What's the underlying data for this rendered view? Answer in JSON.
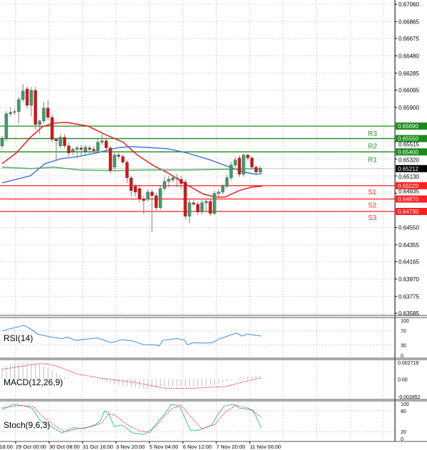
{
  "chart_data": [
    {
      "type": "candlestick",
      "panel": "price",
      "y_ticks": [
        "0.67060",
        "0.66865",
        "0.66675",
        "0.66480",
        "0.66285",
        "0.66095",
        "0.65900",
        "0.65515",
        "0.65320",
        "0.65130",
        "0.64935",
        "0.64550",
        "0.64355",
        "0.64165",
        "0.63970",
        "0.63775",
        "0.63585"
      ],
      "ylim": [
        0.63585,
        0.6706
      ],
      "x_ticks": [
        "28 Oct 16:00",
        "29 Oct 00:00",
        "30 Oct 08:00",
        "31 Oct 16:00",
        "3 Nov 20:00",
        "5 Nov 04:00",
        "6 Nov 12:00",
        "7 Nov 20:00",
        "11 Nov 00:00"
      ],
      "grid": true,
      "colors": {
        "bull": "#3c9f6a",
        "bear": "#e01010",
        "wick": "#808080"
      },
      "candles_ohlc": [
        [
          0.65468,
          0.65578,
          0.65438,
          0.65548
        ],
        [
          0.65548,
          0.6586,
          0.65518,
          0.65828
        ],
        [
          0.65828,
          0.659,
          0.658,
          0.65844
        ],
        [
          0.65844,
          0.6588,
          0.6582,
          0.65852
        ],
        [
          0.65852,
          0.6602,
          0.6572,
          0.65988
        ],
        [
          0.65988,
          0.6616,
          0.6596,
          0.66084
        ],
        [
          0.66108,
          0.6614,
          0.6589,
          0.65924
        ],
        [
          0.65924,
          0.6613,
          0.658,
          0.66092
        ],
        [
          0.66092,
          0.6613,
          0.6565,
          0.65708
        ],
        [
          0.65708,
          0.6576,
          0.656,
          0.65748
        ],
        [
          0.65748,
          0.6596,
          0.6572,
          0.65892
        ],
        [
          0.65892,
          0.6598,
          0.6576,
          0.65788
        ],
        [
          0.65788,
          0.6582,
          0.6551,
          0.6554
        ],
        [
          0.6554,
          0.6556,
          0.653,
          0.65524
        ],
        [
          0.65468,
          0.656,
          0.6544,
          0.65564
        ],
        [
          0.65564,
          0.656,
          0.6544,
          0.65468
        ],
        [
          0.65468,
          0.655,
          0.6535,
          0.65388
        ],
        [
          0.65404,
          0.6545,
          0.6537,
          0.65428
        ],
        [
          0.65428,
          0.6547,
          0.6533,
          0.65444
        ],
        [
          0.65444,
          0.6548,
          0.6535,
          0.65428
        ],
        [
          0.65404,
          0.6548,
          0.6537,
          0.65452
        ],
        [
          0.65444,
          0.6547,
          0.6538,
          0.65428
        ],
        [
          0.65428,
          0.6546,
          0.6538,
          0.65412
        ],
        [
          0.65412,
          0.6554,
          0.6539,
          0.65508
        ],
        [
          0.65508,
          0.6562,
          0.6548,
          0.65524
        ],
        [
          0.65524,
          0.6555,
          0.6541,
          0.65444
        ],
        [
          0.65444,
          0.6547,
          0.6516,
          0.65188
        ],
        [
          0.65228,
          0.6539,
          0.652,
          0.65364
        ],
        [
          0.65364,
          0.6539,
          0.6532,
          0.65348
        ],
        [
          0.65348,
          0.6537,
          0.6526,
          0.65284
        ],
        [
          0.65284,
          0.6531,
          0.6505,
          0.65108
        ],
        [
          0.65108,
          0.6513,
          0.649,
          0.64964
        ],
        [
          0.65012,
          0.6504,
          0.649,
          0.64948
        ],
        [
          0.64988,
          0.6501,
          0.6483,
          0.64868
        ],
        [
          0.64868,
          0.649,
          0.647,
          0.64852
        ],
        [
          0.64868,
          0.6498,
          0.6484,
          0.64948
        ],
        [
          0.64948,
          0.6498,
          0.645,
          0.64908
        ],
        [
          0.64908,
          0.6494,
          0.6474,
          0.64772
        ],
        [
          0.64772,
          0.6502,
          0.6475,
          0.64988
        ],
        [
          0.64988,
          0.6512,
          0.6496,
          0.65068
        ],
        [
          0.65068,
          0.6513,
          0.65,
          0.65092
        ],
        [
          0.65084,
          0.6512,
          0.6506,
          0.65108
        ],
        [
          0.65108,
          0.6515,
          0.65,
          0.65108
        ],
        [
          0.65092,
          0.6513,
          0.6498,
          0.65044
        ],
        [
          0.6506,
          0.6509,
          0.6464,
          0.64676
        ],
        [
          0.64676,
          0.6487,
          0.646,
          0.64828
        ],
        [
          0.64828,
          0.6486,
          0.6479,
          0.64812
        ],
        [
          0.64812,
          0.6484,
          0.6469,
          0.64724
        ],
        [
          0.64724,
          0.6486,
          0.647,
          0.64828
        ],
        [
          0.64828,
          0.6487,
          0.6472,
          0.64844
        ],
        [
          0.64844,
          0.6487,
          0.6468,
          0.64708
        ],
        [
          0.64708,
          0.6496,
          0.6469,
          0.64932
        ],
        [
          0.64932,
          0.6498,
          0.649,
          0.64948
        ],
        [
          0.64948,
          0.6504,
          0.6492,
          0.65012
        ],
        [
          0.65012,
          0.6514,
          0.6499,
          0.65108
        ],
        [
          0.65108,
          0.6529,
          0.6508,
          0.65252
        ],
        [
          0.65252,
          0.6534,
          0.6522,
          0.65308
        ],
        [
          0.65332,
          0.6536,
          0.6512,
          0.65148
        ],
        [
          0.65148,
          0.6538,
          0.6512,
          0.65364
        ],
        [
          0.65364,
          0.6538,
          0.653,
          0.65332
        ],
        [
          0.65332,
          0.6535,
          0.652,
          0.65228
        ],
        [
          0.65228,
          0.6525,
          0.6514,
          0.65172
        ],
        [
          0.65172,
          0.6524,
          0.6516,
          0.65212
        ]
      ],
      "moving_averages": [
        {
          "color": "#ee1c1c",
          "points": [
            [
              0,
              0.65268
            ],
            [
              3.4,
              0.65388
            ],
            [
              6.8,
              0.65564
            ],
            [
              9.7,
              0.65684
            ],
            [
              12.5,
              0.65724
            ],
            [
              15.4,
              0.65732
            ],
            [
              20.5,
              0.65692
            ],
            [
              25.1,
              0.65588
            ],
            [
              29.1,
              0.65508
            ],
            [
              32.5,
              0.65364
            ],
            [
              36.4,
              0.65244
            ],
            [
              39.8,
              0.65164
            ],
            [
              44.4,
              0.65028
            ],
            [
              48.4,
              0.64924
            ],
            [
              51.3,
              0.64892
            ],
            [
              53.5,
              0.64892
            ],
            [
              56.9,
              0.64964
            ],
            [
              59.8,
              0.65004
            ],
            [
              62.4,
              0.65012
            ]
          ]
        },
        {
          "color": "#4a74d8",
          "points": [
            [
              0,
              0.65052
            ],
            [
              6.8,
              0.65132
            ],
            [
              10.3,
              0.65268
            ],
            [
              14.2,
              0.65324
            ],
            [
              18.3,
              0.65348
            ],
            [
              22.7,
              0.65388
            ],
            [
              27.4,
              0.65444
            ],
            [
              30.8,
              0.6546
            ],
            [
              34.2,
              0.65452
            ],
            [
              39.8,
              0.65436
            ],
            [
              44.4,
              0.65388
            ],
            [
              50.1,
              0.65308
            ],
            [
              54.7,
              0.65228
            ],
            [
              58.1,
              0.65172
            ],
            [
              61,
              0.65148
            ],
            [
              62.4,
              0.65156
            ]
          ]
        },
        {
          "color": "#4fb36a",
          "points": [
            [
              0,
              0.65228
            ],
            [
              6.8,
              0.65212
            ],
            [
              12.5,
              0.65228
            ],
            [
              18.3,
              0.65196
            ],
            [
              27.4,
              0.65188
            ],
            [
              34.2,
              0.65196
            ],
            [
              44.4,
              0.65196
            ],
            [
              54.7,
              0.65204
            ],
            [
              62.4,
              0.65212
            ]
          ]
        }
      ],
      "levels": [
        {
          "name": "R3",
          "value": 0.6569,
          "label": "0.65690",
          "color": "#1a8a1a"
        },
        {
          "name": "R2",
          "value": 0.6555,
          "label": "0.65550",
          "color": "#1a8a1a"
        },
        {
          "name": "R1",
          "value": 0.654,
          "label": "0.65400",
          "color": "#1a8a1a"
        },
        {
          "name": "S1",
          "value": 0.6502,
          "label": "0.65020",
          "color": "#ff2020"
        },
        {
          "name": "S2",
          "value": 0.6487,
          "label": "0.64870",
          "color": "#ff2020"
        },
        {
          "name": "S3",
          "value": 0.6473,
          "label": "0.64730",
          "color": "#ff2020"
        }
      ],
      "current_price": {
        "value": 0.65212,
        "label": "0.65212"
      }
    },
    {
      "type": "line",
      "panel": "rsi",
      "title": "RSI(14)",
      "y_ticks": [
        "100",
        "70",
        "30",
        "0"
      ],
      "ylim": [
        0,
        100
      ],
      "color": "#3a8ee6",
      "points": [
        [
          0,
          70
        ],
        [
          5.2,
          86
        ],
        [
          7.2,
          73
        ],
        [
          8.5,
          61
        ],
        [
          11.8,
          52
        ],
        [
          14.4,
          48
        ],
        [
          15.7,
          52
        ],
        [
          17.7,
          43
        ],
        [
          22.9,
          50
        ],
        [
          26.2,
          36
        ],
        [
          28.8,
          45
        ],
        [
          31.4,
          41
        ],
        [
          34.1,
          30
        ],
        [
          36.7,
          30
        ],
        [
          37.7,
          27
        ],
        [
          38.6,
          43
        ],
        [
          41.9,
          48
        ],
        [
          43.9,
          43
        ],
        [
          44.5,
          30
        ],
        [
          45.8,
          36
        ],
        [
          48.5,
          35
        ],
        [
          50.4,
          36
        ],
        [
          52.4,
          48
        ],
        [
          56.3,
          64
        ],
        [
          57.6,
          55
        ],
        [
          58.9,
          61
        ],
        [
          62.2,
          55
        ]
      ]
    },
    {
      "type": "bar",
      "panel": "macd",
      "title": "MACD(12,26,9)",
      "y_ticks": [
        "0.002719",
        "0.00",
        "-0.002852"
      ],
      "ylim": [
        -0.002852,
        0.002719
      ],
      "hist_color": "#c0c0c0",
      "signal_color": "#ff3030",
      "histogram": [
        0.0017,
        0.0021,
        0.0024,
        0.0026,
        0.0027,
        0.0027,
        0.0027,
        0.0026,
        0.0025,
        0.0023,
        0.0021,
        0.0018,
        0.0014,
        0.001,
        0.0007,
        0.0004,
        0.0002,
        0.0001,
        0.0,
        0.0,
        0.0001,
        0.0,
        -0.0001,
        -0.0002,
        -0.0003,
        -0.0004,
        -0.0006,
        -0.0008,
        -0.001,
        -0.0011,
        -0.0012,
        -0.0013,
        -0.0014,
        -0.0015,
        -0.0016,
        -0.0016,
        -0.0015,
        -0.0014,
        -0.0013,
        -0.0012,
        -0.0012,
        -0.0011,
        -0.0011,
        -0.001,
        -0.0012,
        -0.0013,
        -0.0013,
        -0.0012,
        -0.0012,
        -0.0011,
        -0.001,
        -0.0009,
        -0.0008,
        -0.0006,
        -0.0004,
        -0.0002,
        0.0,
        0.0002,
        0.0003,
        0.0004,
        0.0005,
        0.0006,
        0.0005
      ],
      "signal": [
        [
          0,
          0.0016
        ],
        [
          8.5,
          0.0025
        ],
        [
          10.5,
          0.0025
        ],
        [
          13.1,
          0.0021
        ],
        [
          18.3,
          0.0008
        ],
        [
          24.2,
          0.0001
        ],
        [
          31.4,
          -0.0005
        ],
        [
          39.3,
          -0.0015
        ],
        [
          45.8,
          -0.0015
        ],
        [
          53.7,
          -0.0012
        ],
        [
          58.9,
          -0.0003
        ],
        [
          62.2,
          0.0002
        ]
      ]
    },
    {
      "type": "line",
      "panel": "stoch",
      "title": "Stoch(9,6,3)",
      "y_ticks": [
        "100",
        "80",
        "20",
        "0"
      ],
      "ylim": [
        0,
        100
      ],
      "main_color": "#3cc0b0",
      "signal_color": "#ff3030",
      "main": [
        [
          0,
          83
        ],
        [
          2.6,
          98
        ],
        [
          5.2,
          94
        ],
        [
          7.2,
          87
        ],
        [
          9.2,
          51
        ],
        [
          11.8,
          35
        ],
        [
          14.4,
          16
        ],
        [
          17,
          31
        ],
        [
          19.6,
          29
        ],
        [
          22.3,
          39
        ],
        [
          23.6,
          51
        ],
        [
          24.6,
          79
        ],
        [
          25.5,
          75
        ],
        [
          26.9,
          35
        ],
        [
          28.8,
          39
        ],
        [
          31.4,
          16
        ],
        [
          34.1,
          12
        ],
        [
          36,
          28
        ],
        [
          39.3,
          75
        ],
        [
          40.6,
          98
        ],
        [
          42.6,
          94
        ],
        [
          45.2,
          24
        ],
        [
          47.2,
          24
        ],
        [
          50.4,
          39
        ],
        [
          51.7,
          67
        ],
        [
          53.4,
          94
        ],
        [
          55.7,
          98
        ],
        [
          57,
          87
        ],
        [
          60.2,
          83
        ],
        [
          62.2,
          31
        ]
      ],
      "signal": [
        [
          0,
          88
        ],
        [
          4,
          95
        ],
        [
          7.5,
          92
        ],
        [
          10,
          60
        ],
        [
          13,
          35
        ],
        [
          15,
          20
        ],
        [
          18,
          28
        ],
        [
          21,
          33
        ],
        [
          24,
          45
        ],
        [
          25.5,
          70
        ],
        [
          27,
          68
        ],
        [
          30,
          40
        ],
        [
          33,
          22
        ],
        [
          35.5,
          18
        ],
        [
          38,
          50
        ],
        [
          40.6,
          85
        ],
        [
          43,
          96
        ],
        [
          45.5,
          60
        ],
        [
          48,
          28
        ],
        [
          51,
          40
        ],
        [
          53.5,
          75
        ],
        [
          56,
          95
        ],
        [
          59,
          88
        ],
        [
          62.2,
          62
        ]
      ]
    }
  ]
}
